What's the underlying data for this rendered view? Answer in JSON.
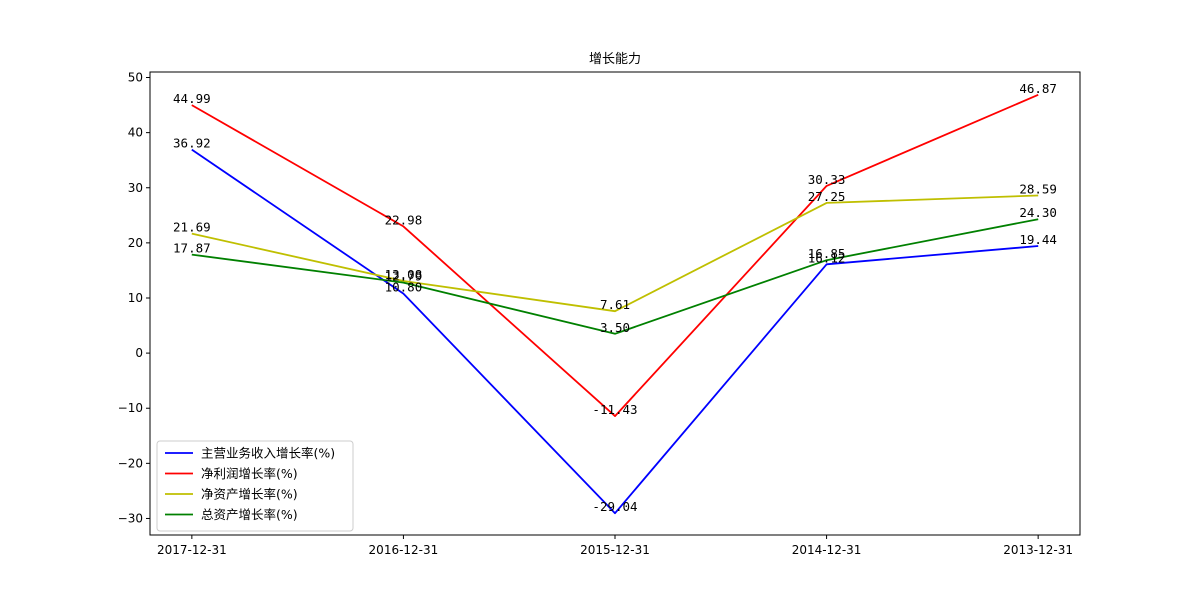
{
  "chart_data": {
    "type": "line",
    "title": "增长能力",
    "xlabel": "",
    "ylabel": "",
    "categories": [
      "2017-12-31",
      "2016-12-31",
      "2015-12-31",
      "2014-12-31",
      "2013-12-31"
    ],
    "ylim": [
      -33,
      51
    ],
    "yticks": [
      -30,
      -20,
      -10,
      0,
      10,
      20,
      30,
      40,
      50
    ],
    "ytick_labels": [
      "−30",
      "−20",
      "−10",
      "0",
      "10",
      "20",
      "30",
      "40",
      "50"
    ],
    "grid": false,
    "legend_position": "lower-left",
    "series": [
      {
        "name": "主营业务收入增长率(%)",
        "color": "#0000ff",
        "values": [
          36.92,
          10.8,
          -29.04,
          16.12,
          19.44
        ],
        "labels": [
          "36.92",
          "10.80",
          "-29.04",
          "16.12",
          "19.44"
        ]
      },
      {
        "name": "净利润增长率(%)",
        "color": "#ff0000",
        "values": [
          44.99,
          22.98,
          -11.43,
          30.33,
          46.87
        ],
        "labels": [
          "44.99",
          "22.98",
          "-11.43",
          "30.33",
          "46.87"
        ]
      },
      {
        "name": "净资产增长率(%)",
        "color": "#bfbf00",
        "values": [
          21.69,
          13.08,
          7.61,
          27.25,
          28.59
        ],
        "labels": [
          "21.69",
          "13.08",
          "7.61",
          "27.25",
          "28.59"
        ]
      },
      {
        "name": "总资产增长率(%)",
        "color": "#008000",
        "values": [
          17.87,
          12.79,
          3.5,
          16.85,
          24.3
        ],
        "labels": [
          "17.87",
          "12.79",
          "3.50",
          "16.85",
          "24.30"
        ]
      }
    ]
  }
}
